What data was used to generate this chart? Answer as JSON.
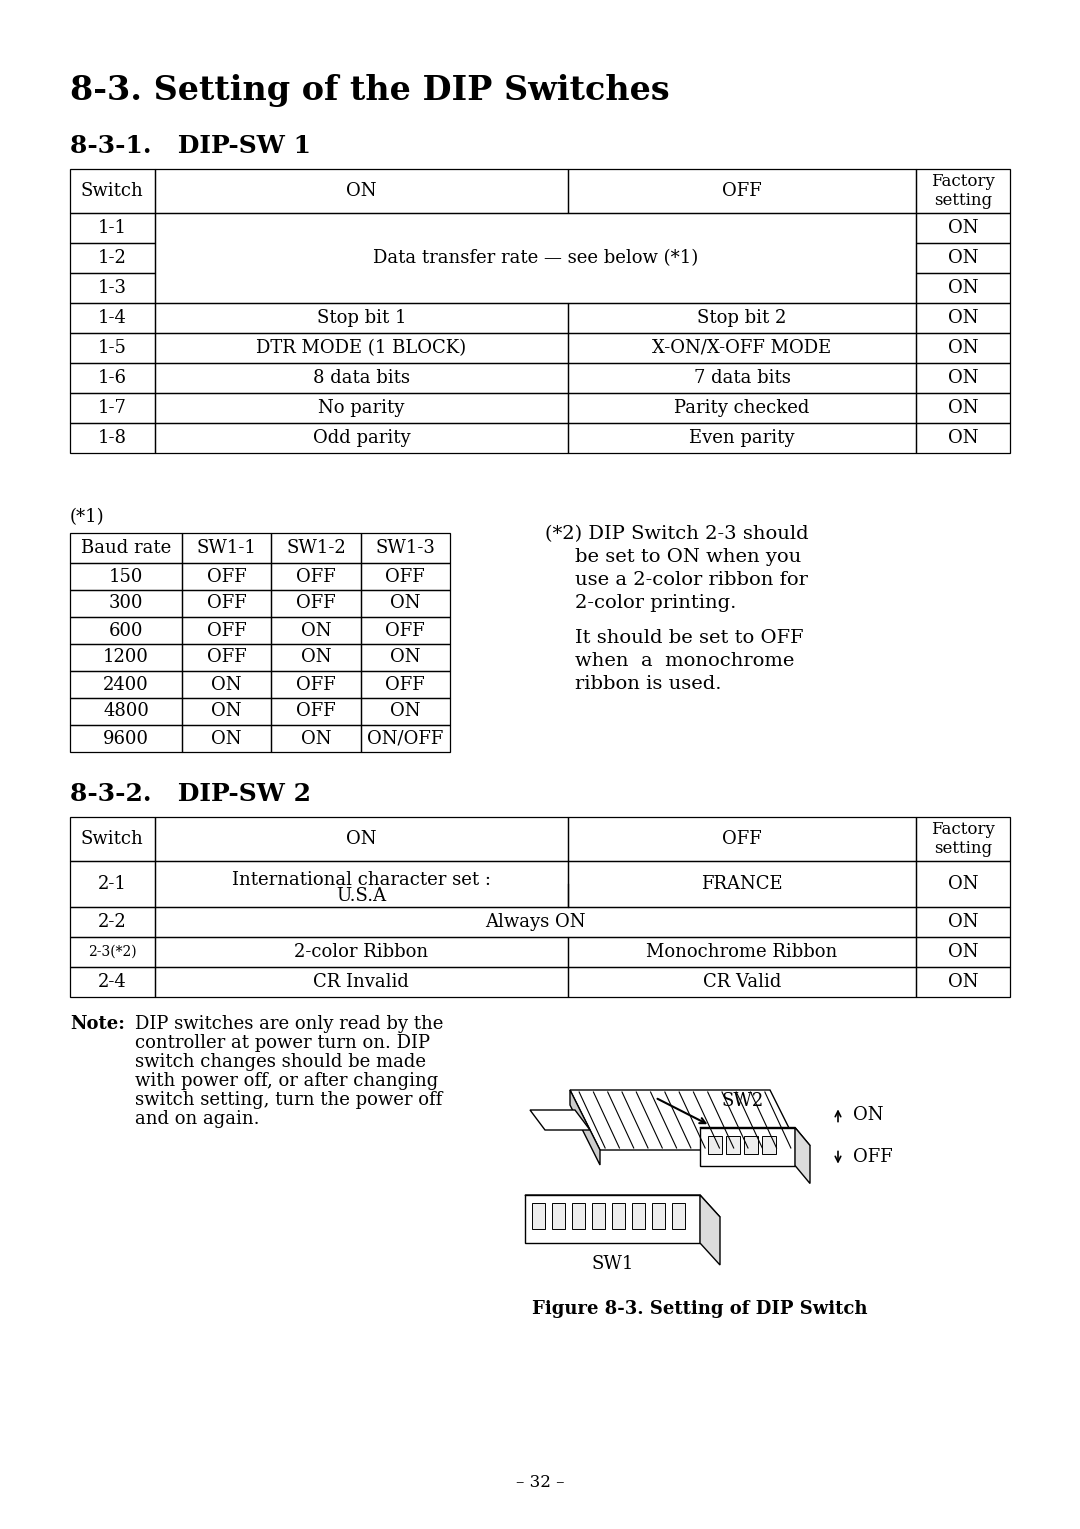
{
  "title": "8-3. Setting of the DIP Switches",
  "section1": "8-3-1.   DIP-SW 1",
  "section2": "8-3-2.   DIP-SW 2",
  "baud_table_label": "(*1)",
  "baud_headers": [
    "Baud rate",
    "SW1-1",
    "SW1-2",
    "SW1-3"
  ],
  "baud_rows": [
    [
      "150",
      "OFF",
      "OFF",
      "OFF"
    ],
    [
      "300",
      "OFF",
      "OFF",
      "ON"
    ],
    [
      "600",
      "OFF",
      "ON",
      "OFF"
    ],
    [
      "1200",
      "OFF",
      "ON",
      "ON"
    ],
    [
      "2400",
      "ON",
      "OFF",
      "OFF"
    ],
    [
      "4800",
      "ON",
      "OFF",
      "ON"
    ],
    [
      "9600",
      "ON",
      "ON",
      "ON/OFF"
    ]
  ],
  "note2_line0": "(*2) DIP Switch 2-3 should",
  "note2_lines": [
    "be set to ON when you",
    "use a 2-color ribbon for",
    "2-color printing.",
    "",
    "It should be set to OFF",
    "when  a  monochrome",
    "ribbon is used."
  ],
  "figure_caption": "Figure 8-3. Setting of DIP Switch",
  "page_number": "– 32 –",
  "bg_color": "#ffffff"
}
